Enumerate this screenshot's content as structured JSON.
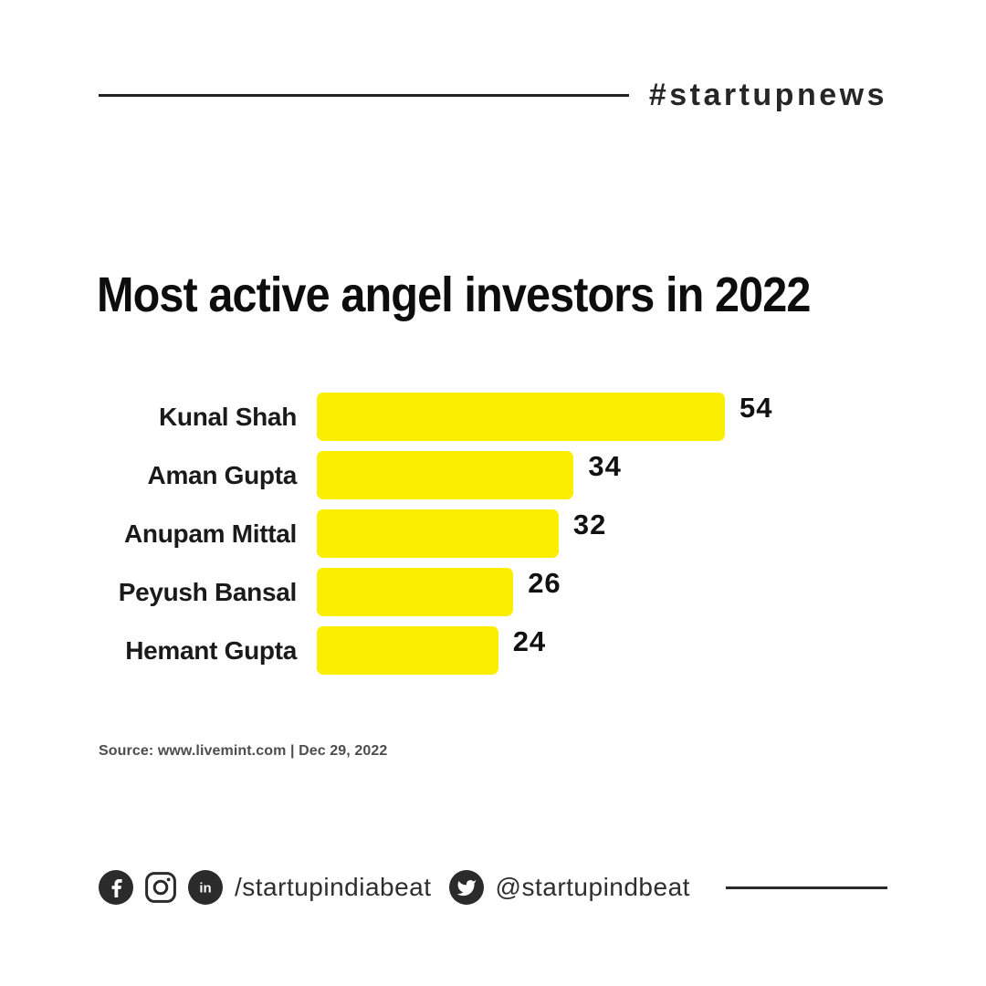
{
  "header": {
    "hashtag": "#startupnews"
  },
  "title": "Most active angel investors in 2022",
  "chart_data": {
    "type": "bar",
    "orientation": "horizontal",
    "title": "Most active angel investors in 2022",
    "categories": [
      "Kunal Shah",
      "Aman Gupta",
      "Anupam Mittal",
      "Peyush Bansal",
      "Hemant Gupta"
    ],
    "values": [
      54,
      34,
      32,
      26,
      24
    ],
    "xlabel": "",
    "ylabel": "",
    "xlim": [
      0,
      54
    ],
    "grid": false,
    "legend": false,
    "value_labels_shown": true,
    "bar_color": "#FAEF00"
  },
  "source": {
    "text": "Source: www.livemint.com | Dec 29, 2022"
  },
  "footer": {
    "icons": [
      "facebook-icon",
      "instagram-icon",
      "linkedin-icon"
    ],
    "handle_primary": "/startupindiabeat",
    "twitter_icon": "twitter-icon",
    "handle_twitter": "@startupindbeat"
  },
  "colors": {
    "background": "#ffffff",
    "bar_yellow": "#FAEF00",
    "text_dark": "#1a1a1a",
    "source_gray": "#4d4d4d",
    "footer_dark": "#2b2b2b"
  }
}
